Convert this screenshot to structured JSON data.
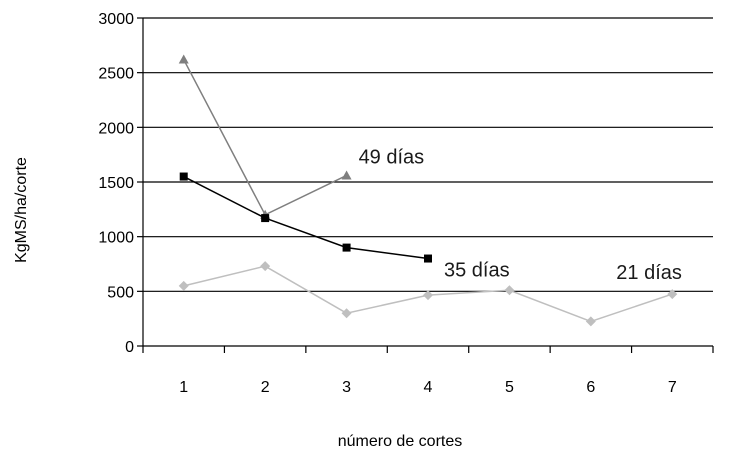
{
  "chart_data": {
    "type": "line",
    "xlabel": "número de cortes",
    "ylabel": "KgMS/ha/corte",
    "categories": [
      "1",
      "2",
      "3",
      "4",
      "5",
      "6",
      "7"
    ],
    "ylim": [
      0,
      3000
    ],
    "yticks": [
      0,
      500,
      1000,
      1500,
      2000,
      2500,
      3000
    ],
    "grid": "horizontal",
    "series": [
      {
        "name": "49 días",
        "marker": "triangle",
        "color": "#7f7f7f",
        "points": [
          [
            1,
            2620
          ],
          [
            2,
            1200
          ],
          [
            3,
            1560
          ]
        ]
      },
      {
        "name": "35 días",
        "marker": "square",
        "color": "#000000",
        "points": [
          [
            1,
            1550
          ],
          [
            2,
            1170
          ],
          [
            3,
            900
          ],
          [
            4,
            800
          ]
        ]
      },
      {
        "name": "21 días",
        "marker": "diamond",
        "color": "#bfbfbf",
        "points": [
          [
            1,
            550
          ],
          [
            2,
            730
          ],
          [
            3,
            300
          ],
          [
            4,
            465
          ],
          [
            5,
            510
          ],
          [
            6,
            225
          ],
          [
            7,
            475
          ]
        ]
      }
    ]
  }
}
